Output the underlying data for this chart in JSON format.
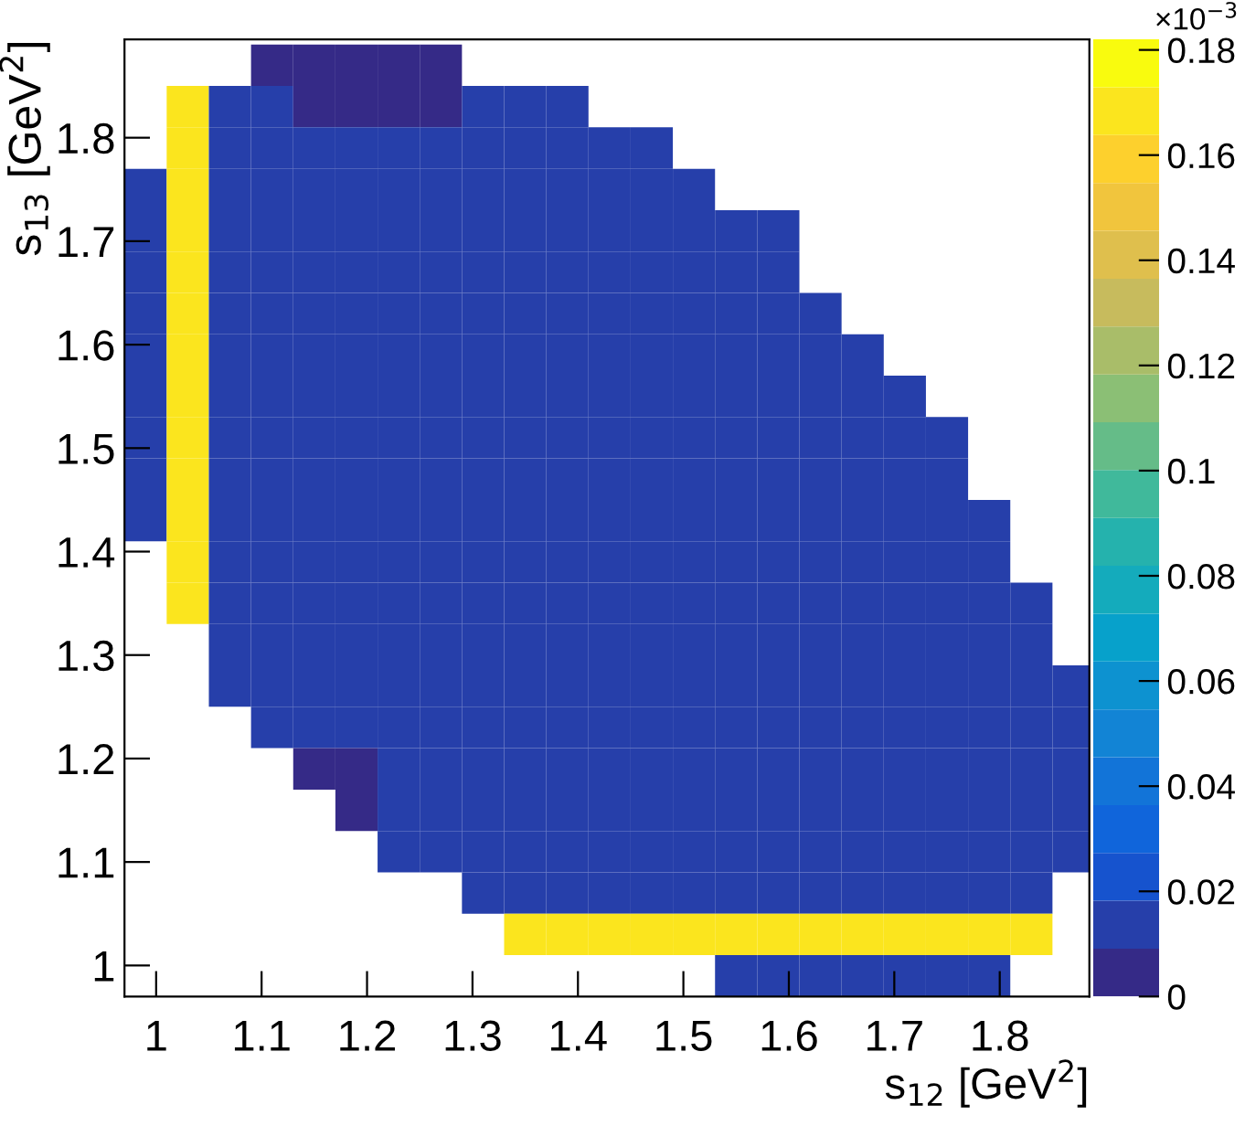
{
  "chart_data": {
    "type": "heatmap",
    "xlabel": "s$_{12}$ [GeV$^{2}$]",
    "ylabel": "s$_{13}$ [GeV$^{2}$]",
    "clabel": "×10$^{−3}$",
    "x": [
      0.99,
      1.03,
      1.07,
      1.11,
      1.15,
      1.19,
      1.23,
      1.27,
      1.31,
      1.35,
      1.39,
      1.43,
      1.47,
      1.51,
      1.55,
      1.59,
      1.63,
      1.67,
      1.71,
      1.75,
      1.79,
      1.83,
      1.87
    ],
    "y": [
      1.87,
      1.83,
      1.79,
      1.75,
      1.71,
      1.67,
      1.63,
      1.59,
      1.55,
      1.51,
      1.47,
      1.43,
      1.39,
      1.35,
      1.31,
      1.27,
      1.23,
      1.19,
      1.15,
      1.11,
      1.07,
      1.03,
      0.99
    ],
    "cells": [
      [
        null,
        null,
        null,
        0.008,
        0.008,
        0.008,
        0.008,
        0.008,
        null,
        null,
        null,
        null,
        null,
        null,
        null,
        null,
        null,
        null,
        null,
        null,
        null,
        null,
        null
      ],
      [
        null,
        0.17,
        0.012,
        0.012,
        0.008,
        0.008,
        0.008,
        0.008,
        0.012,
        0.012,
        0.012,
        null,
        null,
        null,
        null,
        null,
        null,
        null,
        null,
        null,
        null,
        null,
        null
      ],
      [
        null,
        0.17,
        0.012,
        0.012,
        0.012,
        0.012,
        0.012,
        0.012,
        0.012,
        0.012,
        0.012,
        0.012,
        0.012,
        null,
        null,
        null,
        null,
        null,
        null,
        null,
        null,
        null,
        null
      ],
      [
        0.012,
        0.17,
        0.012,
        0.012,
        0.012,
        0.012,
        0.012,
        0.012,
        0.012,
        0.012,
        0.012,
        0.012,
        0.012,
        0.012,
        null,
        null,
        null,
        null,
        null,
        null,
        null,
        null,
        null
      ],
      [
        0.012,
        0.17,
        0.012,
        0.012,
        0.012,
        0.012,
        0.012,
        0.012,
        0.012,
        0.012,
        0.012,
        0.012,
        0.012,
        0.012,
        0.012,
        0.012,
        null,
        null,
        null,
        null,
        null,
        null,
        null
      ],
      [
        0.012,
        0.17,
        0.012,
        0.012,
        0.012,
        0.012,
        0.012,
        0.012,
        0.012,
        0.012,
        0.012,
        0.012,
        0.012,
        0.012,
        0.012,
        0.012,
        null,
        null,
        null,
        null,
        null,
        null,
        null
      ],
      [
        0.012,
        0.17,
        0.012,
        0.012,
        0.012,
        0.012,
        0.012,
        0.012,
        0.012,
        0.012,
        0.012,
        0.012,
        0.012,
        0.012,
        0.012,
        0.012,
        0.012,
        null,
        null,
        null,
        null,
        null,
        null
      ],
      [
        0.012,
        0.17,
        0.012,
        0.012,
        0.012,
        0.012,
        0.012,
        0.012,
        0.012,
        0.012,
        0.012,
        0.012,
        0.012,
        0.012,
        0.012,
        0.012,
        0.012,
        0.012,
        null,
        null,
        null,
        null,
        null
      ],
      [
        0.012,
        0.17,
        0.012,
        0.012,
        0.012,
        0.012,
        0.012,
        0.012,
        0.012,
        0.012,
        0.012,
        0.012,
        0.012,
        0.012,
        0.012,
        0.012,
        0.012,
        0.012,
        0.012,
        null,
        null,
        null,
        null
      ],
      [
        0.012,
        0.17,
        0.012,
        0.012,
        0.012,
        0.012,
        0.012,
        0.012,
        0.012,
        0.012,
        0.012,
        0.012,
        0.012,
        0.012,
        0.012,
        0.012,
        0.012,
        0.012,
        0.012,
        0.012,
        null,
        null,
        null
      ],
      [
        0.012,
        0.17,
        0.012,
        0.012,
        0.012,
        0.012,
        0.012,
        0.012,
        0.012,
        0.012,
        0.012,
        0.012,
        0.012,
        0.012,
        0.012,
        0.012,
        0.012,
        0.012,
        0.012,
        0.012,
        null,
        null,
        null
      ],
      [
        0.012,
        0.17,
        0.012,
        0.012,
        0.012,
        0.012,
        0.012,
        0.012,
        0.012,
        0.012,
        0.012,
        0.012,
        0.012,
        0.012,
        0.012,
        0.012,
        0.012,
        0.012,
        0.012,
        0.012,
        0.012,
        null,
        null
      ],
      [
        null,
        0.17,
        0.012,
        0.012,
        0.012,
        0.012,
        0.012,
        0.012,
        0.012,
        0.012,
        0.012,
        0.012,
        0.012,
        0.012,
        0.012,
        0.012,
        0.012,
        0.012,
        0.012,
        0.012,
        0.012,
        null,
        null
      ],
      [
        null,
        0.17,
        0.012,
        0.012,
        0.012,
        0.012,
        0.012,
        0.012,
        0.012,
        0.012,
        0.012,
        0.012,
        0.012,
        0.012,
        0.012,
        0.012,
        0.012,
        0.012,
        0.012,
        0.012,
        0.012,
        0.012,
        null
      ],
      [
        null,
        null,
        0.012,
        0.012,
        0.012,
        0.012,
        0.012,
        0.012,
        0.012,
        0.012,
        0.012,
        0.012,
        0.012,
        0.012,
        0.012,
        0.012,
        0.012,
        0.012,
        0.012,
        0.012,
        0.012,
        0.012,
        null
      ],
      [
        null,
        null,
        0.012,
        0.012,
        0.012,
        0.012,
        0.012,
        0.012,
        0.012,
        0.012,
        0.012,
        0.012,
        0.012,
        0.012,
        0.012,
        0.012,
        0.012,
        0.012,
        0.012,
        0.012,
        0.012,
        0.012,
        0.012
      ],
      [
        null,
        null,
        null,
        0.012,
        0.012,
        0.012,
        0.012,
        0.012,
        0.012,
        0.012,
        0.012,
        0.012,
        0.012,
        0.012,
        0.012,
        0.012,
        0.012,
        0.012,
        0.012,
        0.012,
        0.012,
        0.012,
        0.012
      ],
      [
        null,
        null,
        null,
        null,
        0.008,
        0.008,
        0.012,
        0.012,
        0.012,
        0.012,
        0.012,
        0.012,
        0.012,
        0.012,
        0.012,
        0.012,
        0.012,
        0.012,
        0.012,
        0.012,
        0.012,
        0.012,
        0.012
      ],
      [
        null,
        null,
        null,
        null,
        null,
        0.008,
        0.012,
        0.012,
        0.012,
        0.012,
        0.012,
        0.012,
        0.012,
        0.012,
        0.012,
        0.012,
        0.012,
        0.012,
        0.012,
        0.012,
        0.012,
        0.012,
        0.012
      ],
      [
        null,
        null,
        null,
        null,
        null,
        null,
        0.012,
        0.012,
        0.012,
        0.012,
        0.012,
        0.012,
        0.012,
        0.012,
        0.012,
        0.012,
        0.012,
        0.012,
        0.012,
        0.012,
        0.012,
        0.012,
        0.012
      ],
      [
        null,
        null,
        null,
        null,
        null,
        null,
        null,
        null,
        0.012,
        0.012,
        0.012,
        0.012,
        0.012,
        0.012,
        0.012,
        0.012,
        0.012,
        0.012,
        0.012,
        0.012,
        0.012,
        0.012,
        null
      ],
      [
        null,
        null,
        null,
        null,
        null,
        null,
        null,
        null,
        null,
        0.17,
        0.17,
        0.17,
        0.17,
        0.17,
        0.17,
        0.17,
        0.17,
        0.17,
        0.17,
        0.17,
        0.17,
        0.17,
        null
      ],
      [
        null,
        null,
        null,
        null,
        null,
        null,
        null,
        null,
        null,
        null,
        null,
        null,
        null,
        null,
        0.012,
        0.012,
        0.012,
        0.012,
        0.012,
        0.012,
        0.012,
        null,
        null
      ]
    ],
    "xlim": [
      0.97,
      1.885
    ],
    "ylim": [
      0.97,
      1.895
    ],
    "xticks": [
      1,
      1.1,
      1.2,
      1.3,
      1.4,
      1.5,
      1.6,
      1.7,
      1.8
    ],
    "yticks": [
      1,
      1.1,
      1.2,
      1.3,
      1.4,
      1.5,
      1.6,
      1.7,
      1.8
    ],
    "clim": [
      0,
      0.182
    ],
    "cticks": [
      0,
      0.02,
      0.04,
      0.06,
      0.08,
      0.1,
      0.12,
      0.14,
      0.16,
      0.18
    ],
    "grid": false
  }
}
